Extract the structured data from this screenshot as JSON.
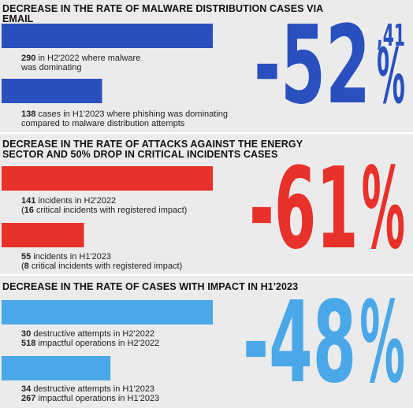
{
  "chart_data": [
    {
      "type": "bar",
      "orientation": "horizontal",
      "title": "DECREASE IN THE RATE OF MALWARE DISTRIBUTION CASES VIA EMAIL",
      "color": "#2a4fbf",
      "values": [
        290,
        138
      ],
      "categories": [
        "in H2'2022 where malware\nwas dominating",
        "cases in H1'2023 where phishing was dominating\ncompared to malware distribution attempts"
      ],
      "headline": {
        "main": "-52",
        "fraction": ",41",
        "unit": "%"
      }
    },
    {
      "type": "bar",
      "orientation": "horizontal",
      "title": "DECREASE IN THE RATE OF ATTACKS AGAINST THE ENERGY SECTOR AND 50% DROP IN CRITICAL INCIDENTS CASES",
      "color": "#e8312a",
      "values": [
        141,
        55
      ],
      "categories": [
        "incidents in H2'2022",
        "incidents in H1'2023"
      ],
      "notes_after": [
        [
          {
            "prefix": "(",
            "value": 16,
            "text": "critical incidents with registered impact)"
          }
        ],
        [
          {
            "prefix": "(",
            "value": 8,
            "text": "critical incidents with registered impact)"
          }
        ]
      ],
      "headline": {
        "main": "-61",
        "unit": "%"
      }
    },
    {
      "type": "bar",
      "orientation": "horizontal",
      "title": "DECREASE IN THE RATE OF CASES WITH IMPACT IN H1'2023",
      "color": "#4aa8e8",
      "values": [
        518,
        267
      ],
      "categories": [
        "impactful operations in H2'2022",
        "impactful operations in H1'2023"
      ],
      "notes_before": [
        [
          {
            "value": 30,
            "text": "destructive attempts in H2'2022"
          }
        ],
        [
          {
            "value": 34,
            "text": "destructive attempts in H1'2023"
          }
        ]
      ],
      "headline": {
        "main": "-48",
        "unit": "%"
      }
    }
  ]
}
